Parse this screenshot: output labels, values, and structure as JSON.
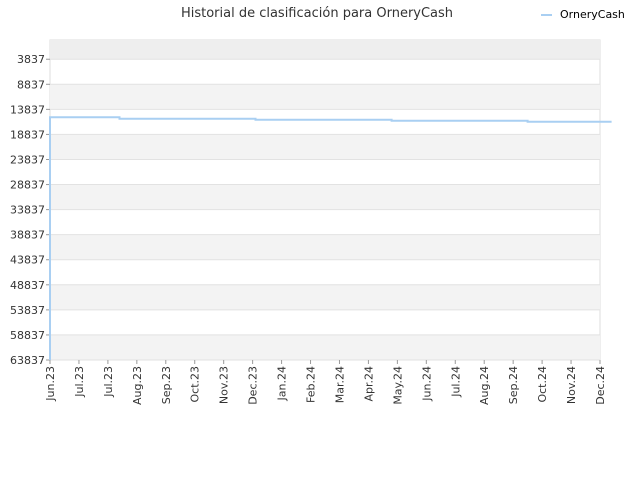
{
  "chart_data": {
    "type": "line",
    "title": "Historial de clasificación para OrneryCash",
    "xlabel": "",
    "ylabel": "",
    "y_inverted": true,
    "ylim": [
      63837,
      0
    ],
    "y_ticks": [
      "3837",
      "8837",
      "13837",
      "18837",
      "23837",
      "28837",
      "33837",
      "38837",
      "43837",
      "48837",
      "53837",
      "58837",
      "63837"
    ],
    "x_ticks": [
      "Jun.23",
      "Jul.23",
      "Jul.23",
      "Aug.23",
      "Sep.23",
      "Oct.23",
      "Nov.23",
      "Dec.23",
      "Jan.24",
      "Feb.24",
      "Mar.24",
      "Apr.24",
      "May.24",
      "Jun.24",
      "Jul.24",
      "Aug.24",
      "Sep.24",
      "Oct.24",
      "Nov.24",
      "Dec.24"
    ],
    "legend_position": "top-right",
    "grid": true,
    "series": [
      {
        "name": "OrneryCash",
        "color": "#a9cff2",
        "points": [
          {
            "x": 0,
            "y": 63837
          },
          {
            "x": 0,
            "y": 15400
          },
          {
            "x": 2.4,
            "y": 15400
          },
          {
            "x": 2.4,
            "y": 15700
          },
          {
            "x": 7.1,
            "y": 15700
          },
          {
            "x": 7.1,
            "y": 15900
          },
          {
            "x": 11.8,
            "y": 15900
          },
          {
            "x": 11.8,
            "y": 16100
          },
          {
            "x": 16.5,
            "y": 16100
          },
          {
            "x": 16.5,
            "y": 16300
          },
          {
            "x": 19.4,
            "y": 16300
          }
        ]
      }
    ]
  }
}
